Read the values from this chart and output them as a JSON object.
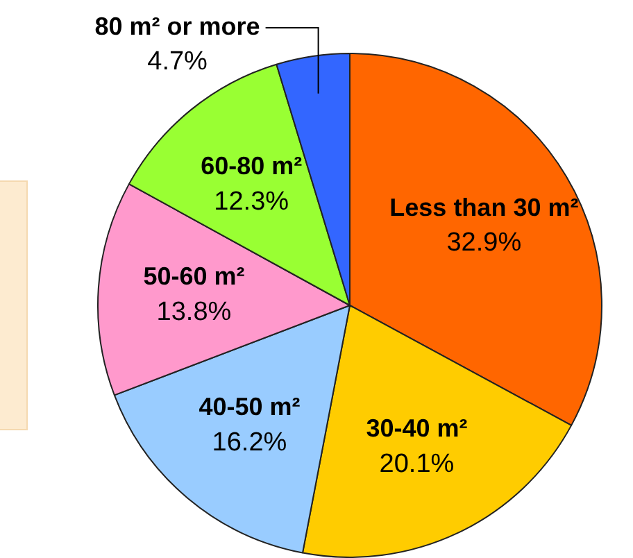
{
  "chart_data": {
    "type": "pie",
    "categories": [
      "Less than 30 m²",
      "30-40 m²",
      "40-50 m²",
      "50-60 m²",
      "60-80 m²",
      "80 m² or more"
    ],
    "values": [
      32.9,
      20.1,
      16.2,
      13.8,
      12.3,
      4.7
    ],
    "value_labels": [
      "32.9%",
      "20.1%",
      "16.2%",
      "13.8%",
      "12.3%",
      "4.7%"
    ],
    "colors": [
      "#ff6600",
      "#ffcc00",
      "#99ccff",
      "#ff99cc",
      "#99ff33",
      "#3366ff"
    ],
    "legend": false
  }
}
